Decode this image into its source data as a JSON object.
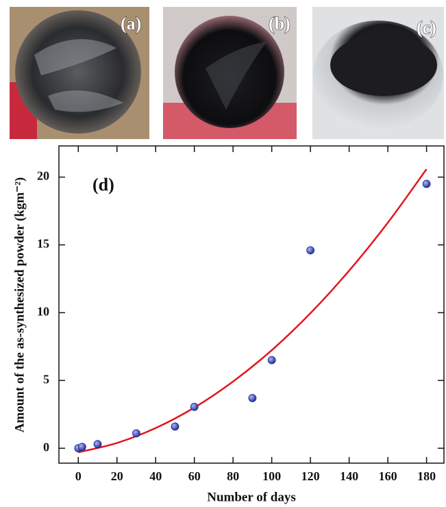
{
  "panels": [
    {
      "label": "(a)"
    },
    {
      "label": "(b)"
    },
    {
      "label": "(c)"
    }
  ],
  "chart_data": {
    "type": "scatter",
    "annotation": "(d)",
    "xlabel": "Number of days",
    "ylabel": "Amount of the as-synthesized powder (kgm⁻²)",
    "xlim": [
      -10,
      189
    ],
    "ylim": [
      -1.1,
      22.3
    ],
    "xticks": [
      0,
      20,
      40,
      60,
      80,
      100,
      120,
      140,
      160,
      180
    ],
    "yticks": [
      0,
      5,
      10,
      15,
      20
    ],
    "series": [
      {
        "type": "scatter",
        "color": "#1c2a8c",
        "x": [
          0,
          2,
          10,
          30,
          50,
          60,
          90,
          100,
          120,
          180
        ],
        "values": [
          0,
          0.1,
          0.3,
          1.1,
          1.6,
          3.05,
          3.7,
          6.5,
          14.6,
          19.5
        ]
      },
      {
        "type": "line",
        "color": "#e3141c",
        "x": [
          0,
          20,
          40,
          60,
          80,
          100,
          120,
          140,
          160,
          180
        ],
        "values": [
          -0.3,
          0.39,
          1.49,
          3.0,
          4.92,
          7.23,
          9.96,
          13.1,
          16.64,
          20.59
        ]
      }
    ]
  }
}
